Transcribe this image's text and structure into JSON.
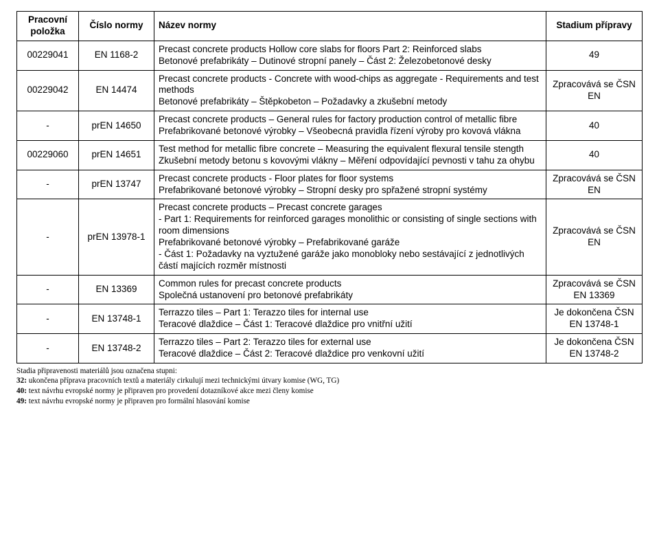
{
  "columns": {
    "work": "Pracovní položka",
    "std": "Číslo normy",
    "name": "Název normy",
    "stage": "Stadium přípravy"
  },
  "rows": [
    {
      "work": "00229041",
      "std": "EN 1168-2",
      "name": "Precast concrete products Hollow core slabs for floors Part 2: Reinforced slabs\nBetonové prefabrikáty – Dutinové stropní panely – Část 2: Železobetonové desky",
      "stage": "49"
    },
    {
      "work": "00229042",
      "std": "EN 14474",
      "name": "Precast concrete products - Concrete with wood-chips as aggregate - Requirements and test methods\nBetonové prefabrikáty – Štěpkobeton – Požadavky a zkušební metody",
      "stage": "Zpracovává se ČSN EN"
    },
    {
      "work": "-",
      "std": "prEN 14650",
      "name": "Precast concrete products – General rules for factory production control of metallic fibre\nPrefabrikované betonové výrobky – Všeobecná pravidla řízení výroby pro kovová vlákna",
      "stage": "40"
    },
    {
      "work": "00229060",
      "std": "prEN 14651",
      "name": "Test method for metallic fibre concrete – Measuring the equivalent flexural tensile stength\nZkušební metody betonu s kovovými vlákny – Měření odpovídající pevnosti v tahu za ohybu",
      "stage": "40"
    },
    {
      "work": "-",
      "std": "prEN 13747",
      "name": "Precast concrete products - Floor plates for floor systems\nPrefabrikované betonové výrobky – Stropní desky pro spřažené stropní systémy",
      "stage": "Zpracovává se ČSN EN"
    },
    {
      "work": "-",
      "std": "prEN 13978-1",
      "name": "Precast concrete products – Precast concrete garages\n- Part 1:  Requirements for reinforced garages monolithic or consisting of single sections with room dimensions\nPrefabrikované betonové výrobky – Prefabrikované garáže\n- Část 1:  Požadavky na vyztužené garáže jako monobloky nebo sestávající z jednotlivých částí majících rozměr místnosti",
      "stage": "Zpracovává se ČSN EN"
    },
    {
      "work": "-",
      "std": "EN 13369",
      "name": "Common rules for precast concrete products\nSpolečná ustanovení pro betonové prefabrikáty",
      "stage": "Zpracovává se ČSN EN 13369"
    },
    {
      "work": "-",
      "std": "EN 13748-1",
      "name": "Terrazzo tiles – Part 1: Terazzo tiles for internal use\nTeracové dlaždice – Část 1: Teracové dlaždice pro vnitřní užití",
      "stage": "Je dokončena ČSN EN 13748-1"
    },
    {
      "work": "-",
      "std": "EN 13748-2",
      "name": "Terrazzo tiles – Part 2:  Terazzo tiles for external use\nTeracové dlaždice – Část 2: Teracové dlaždice pro venkovní užití",
      "stage": "Je dokončena ČSN EN 13748-2"
    }
  ],
  "footnote": {
    "lead": "Stadia připravenosti materiálů jsou označena stupni:",
    "lines": [
      {
        "num": "32:",
        "text": " ukončena příprava pracovních textů a materiály cirkulují mezi technickými útvary komise (WG, TG)"
      },
      {
        "num": "40:",
        "text": " text návrhu evropské normy je připraven pro provedení dotazníkové akce mezi členy komise"
      },
      {
        "num": "49:",
        "text": " text návrhu evropské normy je připraven pro formální hlasování komise"
      }
    ]
  }
}
